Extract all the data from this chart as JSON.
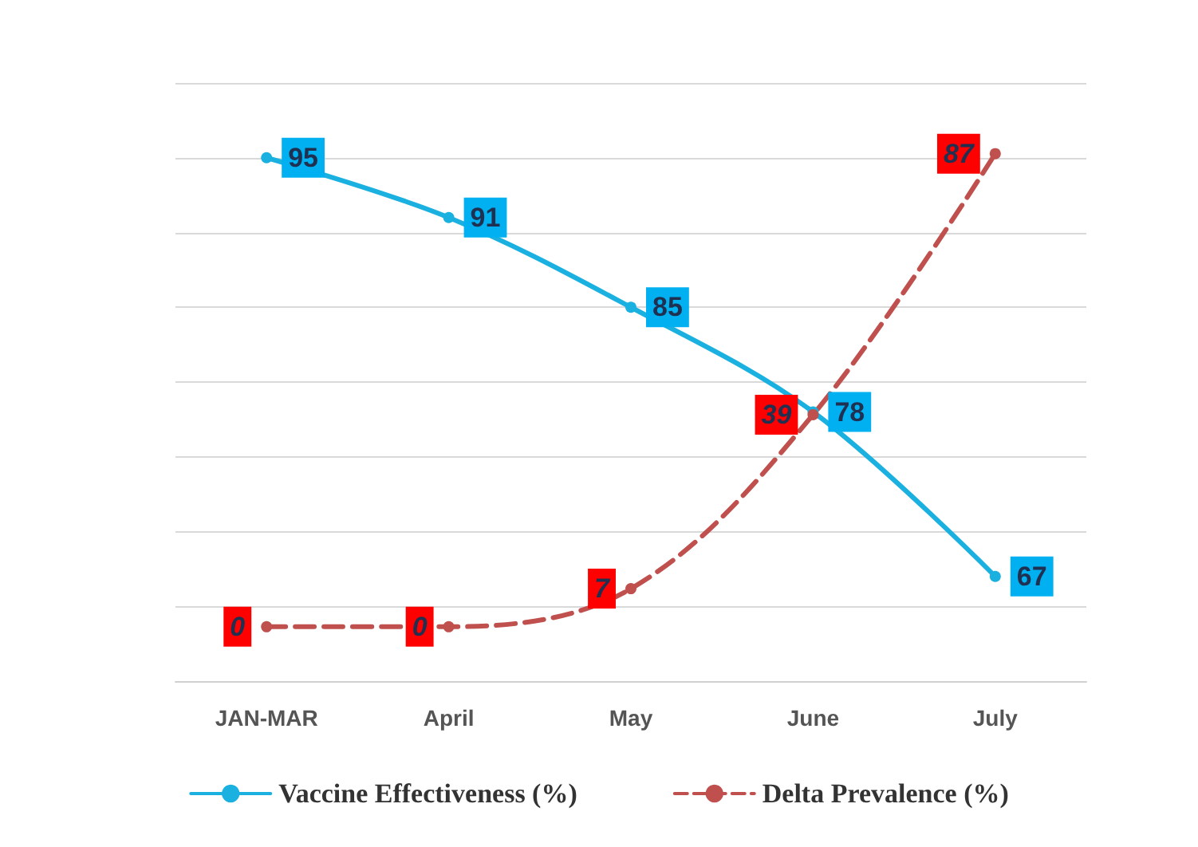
{
  "chart_data": {
    "type": "line",
    "categories": [
      "JAN-MAR",
      "April",
      "May",
      "June",
      "July"
    ],
    "series": [
      {
        "name": "Vaccine Effectiveness (%)",
        "color": "#1ab0e0",
        "values": [
          95,
          91,
          85,
          78,
          67
        ],
        "line_style": "solid"
      },
      {
        "name": "Delta Prevalence (%)",
        "color": "#c0504d",
        "values": [
          0,
          0,
          7,
          39,
          87
        ],
        "axis": "y2",
        "line_style": "dashed"
      }
    ],
    "ylim": [
      60,
      100
    ],
    "yticks": [
      60,
      65,
      70,
      75,
      80,
      85,
      90,
      95,
      100
    ],
    "y2lim": [
      -10,
      100
    ],
    "grid": "y",
    "legend": "bottom",
    "marker": "circle",
    "data_labels": true,
    "tick_labels": "x"
  }
}
